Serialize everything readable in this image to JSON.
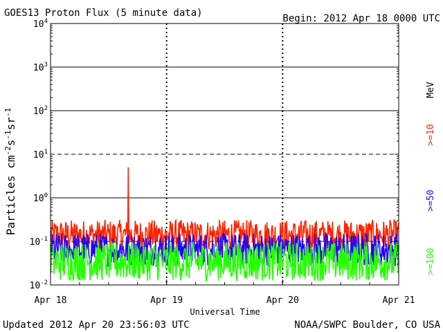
{
  "header": {
    "title": "GOES13 Proton Flux (5 minute data)",
    "begin": "Begin: 2012 Apr 18 0000 UTC"
  },
  "footer": {
    "updated": "Updated 2012 Apr 20 23:56:03 UTC",
    "source": "NOAA/SWPC Boulder, CO USA"
  },
  "chart_data": {
    "type": "line",
    "title": "GOES13 Proton Flux (5 minute data)",
    "xlabel": "Universal Time",
    "ylabel": "Particles cm-2s-1sr-1",
    "ylabel_parts": {
      "base": "Particles cm",
      "sup1": "-2",
      "mid1": "s",
      "sup2": "-1",
      "mid2": "sr",
      "sup3": "-1"
    },
    "y_scale": "log",
    "ylim": [
      0.01,
      10000
    ],
    "y_ticks": [
      {
        "base": "10",
        "exp": "4",
        "value": 10000
      },
      {
        "base": "10",
        "exp": "3",
        "value": 1000
      },
      {
        "base": "10",
        "exp": "2",
        "value": 100
      },
      {
        "base": "10",
        "exp": "1",
        "value": 10
      },
      {
        "base": "10",
        "exp": "0",
        "value": 1
      },
      {
        "base": "10",
        "exp": "-1",
        "value": 0.1
      },
      {
        "base": "10",
        "exp": "-2",
        "value": 0.01
      }
    ],
    "x_ticks": [
      "Apr 18",
      "Apr 19",
      "Apr 20",
      "Apr 21"
    ],
    "xlim": [
      "2012-04-18",
      "2012-04-21"
    ],
    "grid": true,
    "threshold_lines": [
      {
        "value": 1000,
        "style": "solid"
      },
      {
        "value": 100,
        "style": "solid"
      },
      {
        "value": 10,
        "style": "dashed"
      },
      {
        "value": 1,
        "style": "solid"
      },
      {
        "value": 0.1,
        "style": "dashed"
      }
    ],
    "legend_unit": "MeV",
    "legend_placement": "right",
    "series": [
      {
        "name": ">=10",
        "color": "#ff2200",
        "baseline": 0.14,
        "spread": 0.35,
        "points": [
          {
            "x": "2012-04-18T00:00",
            "y": 0.14
          },
          {
            "x": "2012-04-18T12:00",
            "y": 0.15
          },
          {
            "x": "2012-04-18T16:05",
            "y": 5.0
          },
          {
            "x": "2012-04-19T00:00",
            "y": 0.14
          },
          {
            "x": "2012-04-19T12:00",
            "y": 0.15
          },
          {
            "x": "2012-04-20T00:00",
            "y": 0.15
          },
          {
            "x": "2012-04-20T12:00",
            "y": 0.16
          },
          {
            "x": "2012-04-21T00:00",
            "y": 0.15
          }
        ]
      },
      {
        "name": ">=50",
        "color": "#2200ff",
        "baseline": 0.065,
        "spread": 0.38,
        "points": [
          {
            "x": "2012-04-18T00:00",
            "y": 0.065
          },
          {
            "x": "2012-04-19T00:00",
            "y": 0.065
          },
          {
            "x": "2012-04-20T00:00",
            "y": 0.07
          },
          {
            "x": "2012-04-21T00:00",
            "y": 0.07
          }
        ]
      },
      {
        "name": ">=100",
        "color": "#22ff00",
        "baseline": 0.035,
        "spread": 0.45,
        "points": [
          {
            "x": "2012-04-18T00:00",
            "y": 0.035
          },
          {
            "x": "2012-04-19T00:00",
            "y": 0.035
          },
          {
            "x": "2012-04-20T00:00",
            "y": 0.035
          },
          {
            "x": "2012-04-21T00:00",
            "y": 0.035
          }
        ]
      }
    ]
  }
}
